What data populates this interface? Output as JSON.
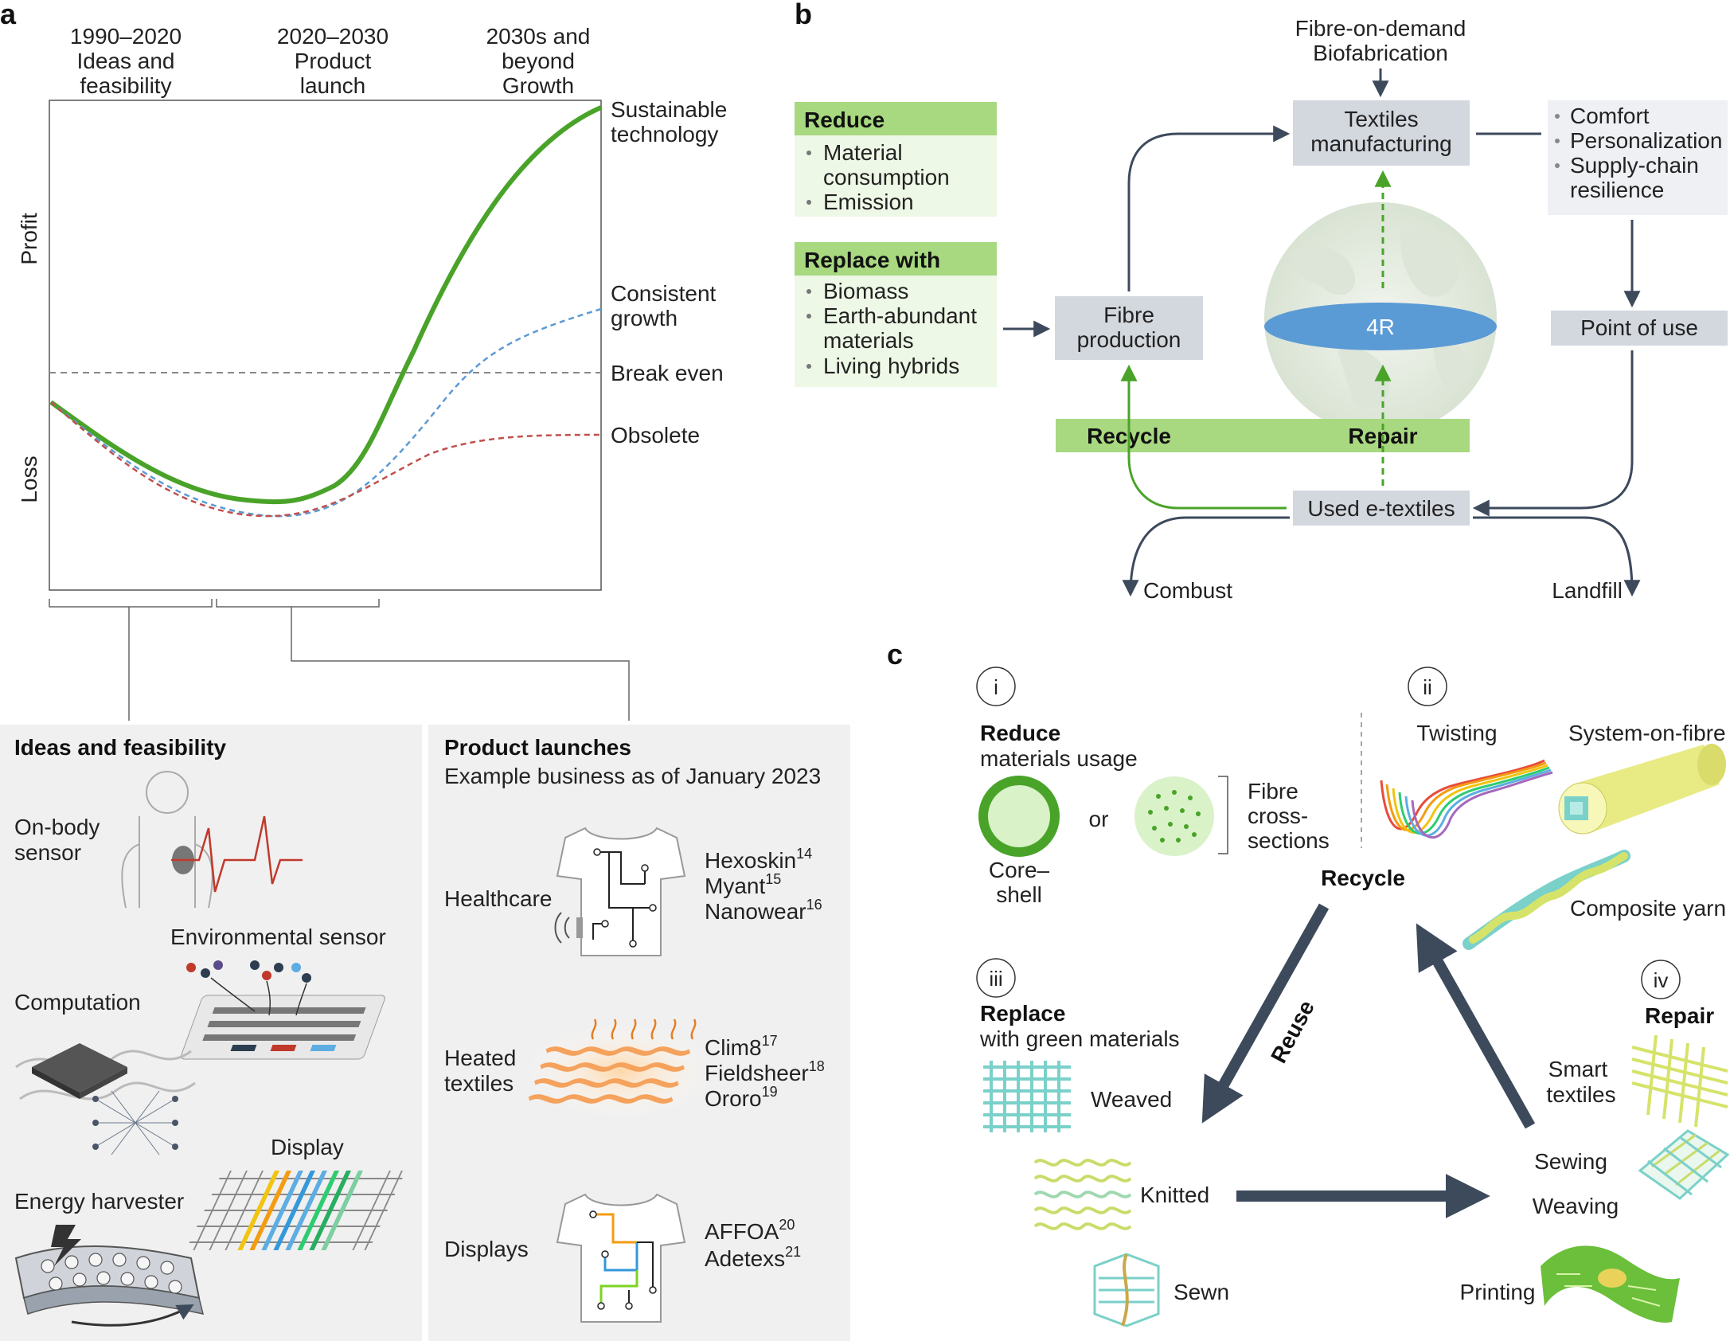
{
  "panel_a": {
    "letter": "a",
    "eras": [
      {
        "line1": "1990–2020",
        "line2": "Ideas and",
        "line3": "feasibility"
      },
      {
        "line1": "2020–2030",
        "line2": "Product",
        "line3": "launch"
      },
      {
        "line1": "2030s and",
        "line2": "beyond",
        "line3": "Growth"
      }
    ],
    "y_labels": {
      "profit": "Profit",
      "loss": "Loss"
    },
    "curve_labels": {
      "sustainable_1": "Sustainable",
      "sustainable_2": "technology",
      "consistent_1": "Consistent",
      "consistent_2": "growth",
      "break_even": "Break even",
      "obsolete": "Obsolete"
    },
    "colors": {
      "sustainable": "#4aa329",
      "consistent": "#5b9bd5",
      "obsolete": "#c0504d",
      "break_even": "#888888"
    }
  },
  "ideas_box": {
    "title": "Ideas and feasibility",
    "on_body_1": "On-body",
    "on_body_2": "sensor",
    "environmental": "Environmental sensor",
    "computation": "Computation",
    "display": "Display",
    "energy": "Energy harvester"
  },
  "product_box": {
    "title": "Product launches",
    "subtitle": "Example business as of January 2023",
    "rows": [
      {
        "category_1": "Healthcare",
        "category_2": "",
        "companies": [
          {
            "name": "Hexoskin",
            "ref": "14"
          },
          {
            "name": "Myant",
            "ref": "15"
          },
          {
            "name": "Nanowear",
            "ref": "16"
          }
        ]
      },
      {
        "category_1": "Heated",
        "category_2": "textiles",
        "companies": [
          {
            "name": "Clim8",
            "ref": "17"
          },
          {
            "name": "Fieldsheer",
            "ref": "18"
          },
          {
            "name": "Ororo",
            "ref": "19"
          }
        ]
      },
      {
        "category_1": "Displays",
        "category_2": "",
        "companies": [
          {
            "name": "AFFOA",
            "ref": "20"
          },
          {
            "name": "Adetexs",
            "ref": "21"
          }
        ]
      }
    ]
  },
  "panel_b": {
    "letter": "b",
    "fibre_on_demand_1": "Fibre-on-demand",
    "fibre_on_demand_2": "Biofabrication",
    "reduce": {
      "title": "Reduce",
      "items_1": "Material",
      "items_2": "consumption",
      "items_3": "Emission"
    },
    "replace": {
      "title": "Replace with",
      "b1": "Biomass",
      "b2": "Earth-abundant",
      "b3": "materials",
      "b4": "Living hybrids"
    },
    "textiles_mfg_1": "Textiles",
    "textiles_mfg_2": "manufacturing",
    "benefits": {
      "b1": "Comfort",
      "b2": "Personalization",
      "b3": "Supply-chain",
      "b4": "resilience"
    },
    "fibre_production_1": "Fibre",
    "fibre_production_2": "production",
    "four_r": "4R",
    "point_of_use": "Point of use",
    "recycle": "Recycle",
    "repair": "Repair",
    "used_etextiles": "Used e-textiles",
    "combust": "Combust",
    "landfill": "Landfill"
  },
  "panel_c": {
    "letter": "c",
    "i": "i",
    "ii": "ii",
    "iii": "iii",
    "iv": "iv",
    "reduce_title": "Reduce",
    "reduce_sub": "materials usage",
    "or": "or",
    "core_shell_1": "Core–",
    "core_shell_2": "shell",
    "fibre_cs_1": "Fibre",
    "fibre_cs_2": "cross-",
    "fibre_cs_3": "sections",
    "twisting": "Twisting",
    "system_on_fibre": "System-on-fibre",
    "recycle": "Recycle",
    "composite_yarn": "Composite yarn",
    "replace_title": "Replace",
    "replace_sub": "with green materials",
    "reuse": "Reuse",
    "weaved": "Weaved",
    "knitted": "Knitted",
    "sewn": "Sewn",
    "repair_title": "Repair",
    "smart_1": "Smart",
    "smart_2": "textiles",
    "sewing": "Sewing",
    "weaving": "Weaving",
    "printing": "Printing"
  }
}
